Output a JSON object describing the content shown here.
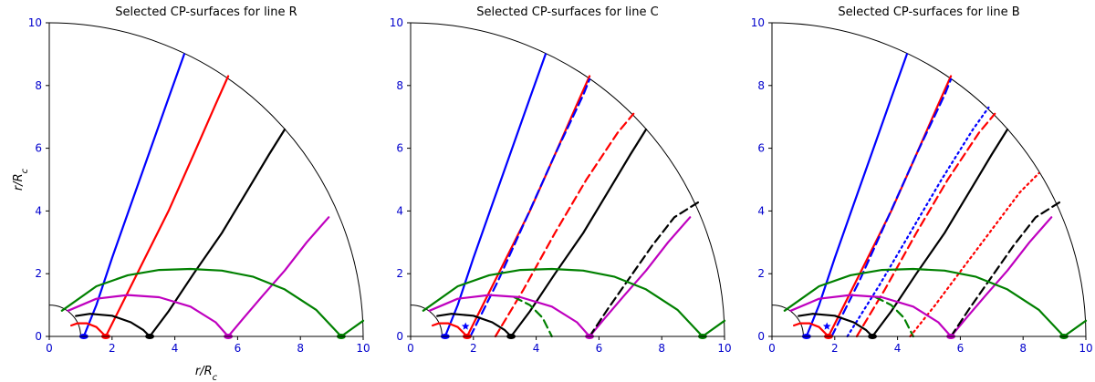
{
  "chart_data": [
    {
      "type": "line",
      "title": "Selected CP-surfaces for line R",
      "xlabel": "r/R_c",
      "ylabel": "r/R_c",
      "xlim": [
        0,
        10
      ],
      "ylim": [
        0,
        10
      ],
      "xticks": [
        "0",
        "2",
        "4",
        "6",
        "8",
        "10"
      ],
      "yticks": [
        "0",
        "2",
        "4",
        "6",
        "8",
        "10"
      ],
      "show_xlabel": true,
      "show_ylabel": true,
      "grid": false,
      "colors": {
        "blue": "#0000ff",
        "red": "#ff0000",
        "black": "#000000",
        "magenta": "#bf00bf",
        "green": "#008000"
      },
      "series": [
        {
          "color": "blue",
          "style": "solid",
          "x": [
            1.1,
            1.5,
            2.0,
            2.6,
            3.2,
            3.8,
            4.3
          ],
          "y": [
            0.0,
            1.0,
            2.5,
            4.2,
            5.9,
            7.6,
            9.0
          ]
        },
        {
          "color": "red",
          "style": "solid",
          "x": [
            1.8,
            2.3,
            3.0,
            3.8,
            4.6,
            5.3,
            5.7
          ],
          "y": [
            0.0,
            1.0,
            2.4,
            4.0,
            5.8,
            7.4,
            8.3
          ]
        },
        {
          "color": "black",
          "style": "solid",
          "x": [
            3.2,
            3.8,
            4.6,
            5.5,
            6.4,
            7.0,
            7.5
          ],
          "y": [
            0.0,
            0.8,
            2.0,
            3.3,
            4.8,
            5.8,
            6.6
          ]
        },
        {
          "color": "magenta",
          "style": "solid",
          "x": [
            5.7,
            6.2,
            6.8,
            7.5,
            8.2,
            8.9
          ],
          "y": [
            0.0,
            0.6,
            1.3,
            2.1,
            3.0,
            3.8
          ]
        },
        {
          "color": "red",
          "style": "solid",
          "x": [
            0.7,
            0.9,
            1.2,
            1.5,
            1.8
          ],
          "y": [
            0.35,
            0.42,
            0.42,
            0.3,
            0.0
          ]
        },
        {
          "color": "black",
          "style": "solid",
          "x": [
            0.85,
            1.3,
            2.0,
            2.6,
            3.0,
            3.2
          ],
          "y": [
            0.65,
            0.72,
            0.66,
            0.45,
            0.2,
            0.0
          ]
        },
        {
          "color": "magenta",
          "style": "solid",
          "x": [
            0.6,
            1.5,
            2.5,
            3.5,
            4.5,
            5.3,
            5.7
          ],
          "y": [
            0.82,
            1.2,
            1.32,
            1.25,
            0.95,
            0.45,
            0.0
          ]
        },
        {
          "color": "green",
          "style": "solid",
          "x": [
            0.4,
            1.5,
            2.5,
            3.5,
            4.5,
            5.5,
            6.5,
            7.5,
            8.5,
            9.3,
            10.0
          ],
          "y": [
            0.82,
            1.6,
            1.95,
            2.12,
            2.15,
            2.1,
            1.9,
            1.5,
            0.85,
            0.0,
            0.5
          ]
        }
      ],
      "markers": [
        {
          "color": "blue",
          "x": 1.1,
          "y": 0.0
        },
        {
          "color": "red",
          "x": 1.8,
          "y": 0.0
        },
        {
          "color": "black",
          "x": 3.2,
          "y": 0.0
        },
        {
          "color": "magenta",
          "x": 5.7,
          "y": 0.0
        },
        {
          "color": "green",
          "x": 9.3,
          "y": 0.0
        }
      ],
      "stars": []
    },
    {
      "type": "line",
      "title": "Selected CP-surfaces for line C",
      "xlabel": "r/R_c",
      "ylabel": "",
      "xlim": [
        0,
        10
      ],
      "ylim": [
        0,
        10
      ],
      "xticks": [
        "0",
        "2",
        "4",
        "6",
        "8",
        "10"
      ],
      "yticks": [
        "0",
        "2",
        "4",
        "6",
        "8",
        "10"
      ],
      "show_xlabel": false,
      "show_ylabel": false,
      "grid": false,
      "colors": {
        "blue": "#0000ff",
        "red": "#ff0000",
        "black": "#000000",
        "magenta": "#bf00bf",
        "green": "#008000"
      },
      "series": [
        {
          "color": "blue",
          "style": "solid",
          "x": [
            1.1,
            1.5,
            2.0,
            2.6,
            3.2,
            3.8,
            4.3
          ],
          "y": [
            0.0,
            1.0,
            2.5,
            4.2,
            5.9,
            7.6,
            9.0
          ]
        },
        {
          "color": "red",
          "style": "solid",
          "x": [
            1.8,
            2.3,
            3.0,
            3.8,
            4.6,
            5.3,
            5.7
          ],
          "y": [
            0.0,
            1.0,
            2.4,
            4.0,
            5.8,
            7.4,
            8.3
          ]
        },
        {
          "color": "black",
          "style": "solid",
          "x": [
            3.2,
            3.8,
            4.6,
            5.5,
            6.4,
            7.0,
            7.5
          ],
          "y": [
            0.0,
            0.8,
            2.0,
            3.3,
            4.8,
            5.8,
            6.6
          ]
        },
        {
          "color": "magenta",
          "style": "solid",
          "x": [
            5.7,
            6.2,
            6.8,
            7.5,
            8.2,
            8.9
          ],
          "y": [
            0.0,
            0.6,
            1.3,
            2.1,
            3.0,
            3.8
          ]
        },
        {
          "color": "blue",
          "style": "dashed",
          "x": [
            1.9,
            2.8,
            3.7,
            4.6,
            5.5,
            5.7
          ],
          "y": [
            0.0,
            1.8,
            3.8,
            5.8,
            7.7,
            8.2
          ]
        },
        {
          "color": "red",
          "style": "dashed",
          "x": [
            2.7,
            3.6,
            4.6,
            5.6,
            6.6,
            7.1
          ],
          "y": [
            0.0,
            1.5,
            3.3,
            5.0,
            6.5,
            7.1
          ]
        },
        {
          "color": "black",
          "style": "dashed",
          "x": [
            5.7,
            6.3,
            7.0,
            7.7,
            8.4,
            9.2
          ],
          "y": [
            0.0,
            0.9,
            1.9,
            2.9,
            3.8,
            4.3
          ]
        },
        {
          "color": "green",
          "style": "dashed",
          "x": [
            3.3,
            3.8,
            4.2,
            4.5
          ],
          "y": [
            1.25,
            1.0,
            0.6,
            0.0
          ]
        },
        {
          "color": "red",
          "style": "solid",
          "x": [
            0.7,
            0.9,
            1.2,
            1.5,
            1.8
          ],
          "y": [
            0.35,
            0.42,
            0.42,
            0.3,
            0.0
          ]
        },
        {
          "color": "black",
          "style": "solid",
          "x": [
            0.85,
            1.3,
            2.0,
            2.6,
            3.0,
            3.2
          ],
          "y": [
            0.65,
            0.72,
            0.66,
            0.45,
            0.2,
            0.0
          ]
        },
        {
          "color": "magenta",
          "style": "solid",
          "x": [
            0.6,
            1.5,
            2.5,
            3.5,
            4.5,
            5.3,
            5.7
          ],
          "y": [
            0.82,
            1.2,
            1.32,
            1.25,
            0.95,
            0.45,
            0.0
          ]
        },
        {
          "color": "green",
          "style": "solid",
          "x": [
            0.4,
            1.5,
            2.5,
            3.5,
            4.5,
            5.5,
            6.5,
            7.5,
            8.5,
            9.3,
            10.0
          ],
          "y": [
            0.82,
            1.6,
            1.95,
            2.12,
            2.15,
            2.1,
            1.9,
            1.5,
            0.85,
            0.0,
            0.5
          ]
        }
      ],
      "markers": [
        {
          "color": "blue",
          "x": 1.1,
          "y": 0.0
        },
        {
          "color": "red",
          "x": 1.8,
          "y": 0.0
        },
        {
          "color": "black",
          "x": 3.2,
          "y": 0.0
        },
        {
          "color": "magenta",
          "x": 5.7,
          "y": 0.0
        },
        {
          "color": "green",
          "x": 9.3,
          "y": 0.0
        }
      ],
      "stars": [
        {
          "color": "blue",
          "x": 1.75,
          "y": 0.32
        }
      ]
    },
    {
      "type": "line",
      "title": "Selected CP-surfaces for line B",
      "xlabel": "",
      "ylabel": "",
      "xlim": [
        0,
        10
      ],
      "ylim": [
        0,
        10
      ],
      "xticks": [
        "0",
        "2",
        "4",
        "6",
        "8",
        "10"
      ],
      "yticks": [
        "0",
        "2",
        "4",
        "6",
        "8",
        "10"
      ],
      "show_xlabel": false,
      "show_ylabel": false,
      "grid": false,
      "colors": {
        "blue": "#0000ff",
        "red": "#ff0000",
        "black": "#000000",
        "magenta": "#bf00bf",
        "green": "#008000"
      },
      "series": [
        {
          "color": "blue",
          "style": "solid",
          "x": [
            1.1,
            1.5,
            2.0,
            2.6,
            3.2,
            3.8,
            4.3
          ],
          "y": [
            0.0,
            1.0,
            2.5,
            4.2,
            5.9,
            7.6,
            9.0
          ]
        },
        {
          "color": "red",
          "style": "solid",
          "x": [
            1.8,
            2.3,
            3.0,
            3.8,
            4.6,
            5.3,
            5.7
          ],
          "y": [
            0.0,
            1.0,
            2.4,
            4.0,
            5.8,
            7.4,
            8.3
          ]
        },
        {
          "color": "black",
          "style": "solid",
          "x": [
            3.2,
            3.8,
            4.6,
            5.5,
            6.4,
            7.0,
            7.5
          ],
          "y": [
            0.0,
            0.8,
            2.0,
            3.3,
            4.8,
            5.8,
            6.6
          ]
        },
        {
          "color": "magenta",
          "style": "solid",
          "x": [
            5.7,
            6.2,
            6.8,
            7.5,
            8.2,
            8.9
          ],
          "y": [
            0.0,
            0.6,
            1.3,
            2.1,
            3.0,
            3.8
          ]
        },
        {
          "color": "blue",
          "style": "dashed",
          "x": [
            1.9,
            2.8,
            3.7,
            4.6,
            5.5,
            5.7
          ],
          "y": [
            0.0,
            1.8,
            3.8,
            5.8,
            7.7,
            8.2
          ]
        },
        {
          "color": "red",
          "style": "dashed",
          "x": [
            2.7,
            3.6,
            4.6,
            5.6,
            6.6,
            7.1
          ],
          "y": [
            0.0,
            1.5,
            3.3,
            5.0,
            6.5,
            7.1
          ]
        },
        {
          "color": "black",
          "style": "dashed",
          "x": [
            5.7,
            6.3,
            7.0,
            7.7,
            8.4,
            9.2
          ],
          "y": [
            0.0,
            0.9,
            1.9,
            2.9,
            3.8,
            4.3
          ]
        },
        {
          "color": "green",
          "style": "dashed",
          "x": [
            3.3,
            3.8,
            4.2,
            4.5
          ],
          "y": [
            1.25,
            1.0,
            0.6,
            0.0
          ]
        },
        {
          "color": "blue",
          "style": "dotted",
          "x": [
            2.4,
            3.4,
            4.4,
            5.4,
            6.4,
            6.9
          ],
          "y": [
            0.0,
            1.6,
            3.3,
            5.0,
            6.6,
            7.3
          ]
        },
        {
          "color": "red",
          "style": "dotted",
          "x": [
            4.4,
            5.2,
            6.1,
            7.0,
            7.9,
            8.5
          ],
          "y": [
            0.0,
            1.0,
            2.2,
            3.4,
            4.6,
            5.2
          ]
        },
        {
          "color": "red",
          "style": "solid",
          "x": [
            0.7,
            0.9,
            1.2,
            1.5,
            1.8
          ],
          "y": [
            0.35,
            0.42,
            0.42,
            0.3,
            0.0
          ]
        },
        {
          "color": "black",
          "style": "solid",
          "x": [
            0.85,
            1.3,
            2.0,
            2.6,
            3.0,
            3.2
          ],
          "y": [
            0.65,
            0.72,
            0.66,
            0.45,
            0.2,
            0.0
          ]
        },
        {
          "color": "magenta",
          "style": "solid",
          "x": [
            0.6,
            1.5,
            2.5,
            3.5,
            4.5,
            5.3,
            5.7
          ],
          "y": [
            0.82,
            1.2,
            1.32,
            1.25,
            0.95,
            0.45,
            0.0
          ]
        },
        {
          "color": "green",
          "style": "solid",
          "x": [
            0.4,
            1.5,
            2.5,
            3.5,
            4.5,
            5.5,
            6.5,
            7.5,
            8.5,
            9.3,
            10.0
          ],
          "y": [
            0.82,
            1.6,
            1.95,
            2.12,
            2.15,
            2.1,
            1.9,
            1.5,
            0.85,
            0.0,
            0.5
          ]
        }
      ],
      "markers": [
        {
          "color": "blue",
          "x": 1.1,
          "y": 0.0
        },
        {
          "color": "red",
          "x": 1.8,
          "y": 0.0
        },
        {
          "color": "black",
          "x": 3.2,
          "y": 0.0
        },
        {
          "color": "magenta",
          "x": 5.7,
          "y": 0.0
        },
        {
          "color": "green",
          "x": 9.3,
          "y": 0.0
        }
      ],
      "stars": [
        {
          "color": "blue",
          "x": 1.75,
          "y": 0.32
        }
      ]
    }
  ]
}
